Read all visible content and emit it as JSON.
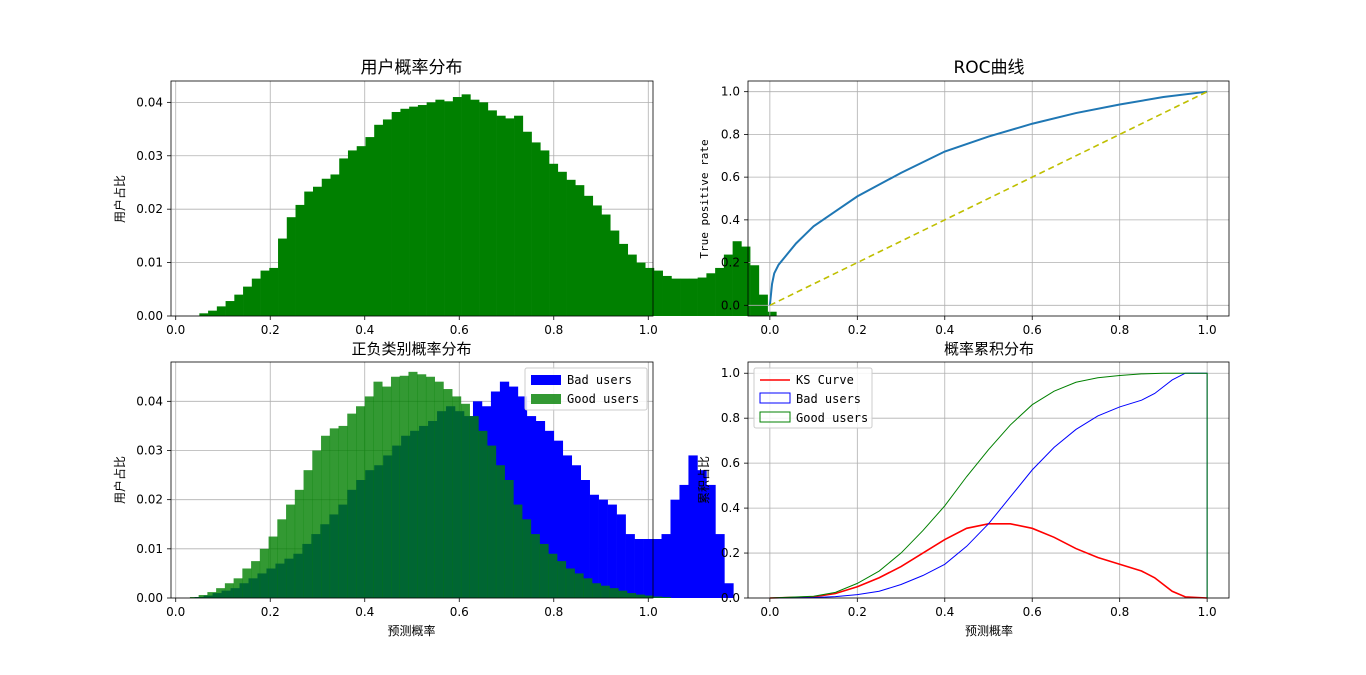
{
  "colors": {
    "green": "#008000",
    "blue": "#0000ff",
    "good_alpha_green": "#2e9a2e",
    "red": "#ff0000",
    "roc": "#1f77b4",
    "diag": "#bfbf00",
    "grid": "#b0b0b0"
  },
  "chart_data": [
    {
      "type": "bar",
      "title": "用户概率分布",
      "xlabel": "",
      "ylabel": "用户占比",
      "xlim": [
        -0.01,
        1.01
      ],
      "ylim": [
        0,
        0.044
      ],
      "xticks": [
        "0.0",
        "0.2",
        "0.4",
        "0.6",
        "0.8",
        "1.0"
      ],
      "yticks": [
        "0.00",
        "0.01",
        "0.02",
        "0.03",
        "0.04"
      ],
      "grid": true,
      "bin_start": 0.05,
      "bin_width": 0.0185,
      "series": [
        {
          "values": [
            0.0005,
            0.001,
            0.0018,
            0.0028,
            0.004,
            0.0055,
            0.007,
            0.0085,
            0.009,
            0.0145,
            0.0185,
            0.0208,
            0.0233,
            0.0242,
            0.0257,
            0.0265,
            0.0295,
            0.031,
            0.0318,
            0.0335,
            0.0358,
            0.0368,
            0.0382,
            0.0388,
            0.0392,
            0.0395,
            0.04,
            0.0405,
            0.0402,
            0.041,
            0.0415,
            0.0405,
            0.04,
            0.0385,
            0.0375,
            0.037,
            0.0375,
            0.0345,
            0.0325,
            0.031,
            0.0285,
            0.027,
            0.0255,
            0.0245,
            0.0225,
            0.0207,
            0.019,
            0.016,
            0.0135,
            0.0115,
            0.01,
            0.009,
            0.0085,
            0.0075,
            0.007,
            0.007,
            0.007,
            0.0072,
            0.008,
            0.009,
            0.0115,
            0.014,
            0.013,
            0.0095,
            0.004,
            0.0008
          ]
        }
      ]
    },
    {
      "type": "line",
      "title": "ROC曲线",
      "xlabel": "",
      "ylabel": "True positive rate",
      "xlim": [
        -0.05,
        1.05
      ],
      "ylim": [
        -0.05,
        1.05
      ],
      "xticks": [
        "0.0",
        "0.2",
        "0.4",
        "0.6",
        "0.8",
        "1.0"
      ],
      "yticks": [
        "0.0",
        "0.2",
        "0.4",
        "0.6",
        "0.8",
        "1.0"
      ],
      "grid": true,
      "series": [
        {
          "x": [
            0,
            0.005,
            0.01,
            0.02,
            0.04,
            0.06,
            0.08,
            0.1,
            0.15,
            0.2,
            0.3,
            0.4,
            0.5,
            0.6,
            0.7,
            0.8,
            0.9,
            1.0
          ],
          "y": [
            0,
            0.1,
            0.15,
            0.19,
            0.24,
            0.29,
            0.33,
            0.37,
            0.44,
            0.51,
            0.62,
            0.72,
            0.79,
            0.85,
            0.9,
            0.94,
            0.975,
            1.0
          ]
        },
        {
          "x": [
            0,
            1
          ],
          "y": [
            0,
            1
          ],
          "style": "dashed"
        }
      ]
    },
    {
      "type": "bar",
      "title": "正负类别概率分布",
      "xlabel": "预测概率",
      "ylabel": "用户占比",
      "xlim": [
        -0.01,
        1.01
      ],
      "ylim": [
        0,
        0.048
      ],
      "xticks": [
        "0.0",
        "0.2",
        "0.4",
        "0.6",
        "0.8",
        "1.0"
      ],
      "yticks": [
        "0.00",
        "0.01",
        "0.02",
        "0.03",
        "0.04"
      ],
      "grid": true,
      "legend": "upper-right",
      "series": [
        {
          "name": "Bad users",
          "bin_start": 0.04,
          "bin_width": 0.019,
          "values": [
            0.0002,
            0.0005,
            0.001,
            0.0015,
            0.002,
            0.003,
            0.004,
            0.005,
            0.006,
            0.007,
            0.008,
            0.009,
            0.011,
            0.013,
            0.015,
            0.017,
            0.019,
            0.022,
            0.024,
            0.026,
            0.027,
            0.029,
            0.031,
            0.033,
            0.034,
            0.035,
            0.036,
            0.038,
            0.039,
            0.038,
            0.037,
            0.04,
            0.039,
            0.042,
            0.044,
            0.043,
            0.041,
            0.037,
            0.036,
            0.034,
            0.032,
            0.029,
            0.027,
            0.024,
            0.021,
            0.02,
            0.019,
            0.017,
            0.013,
            0.012,
            0.012,
            0.012,
            0.013,
            0.02,
            0.023,
            0.029,
            0.026,
            0.023,
            0.013,
            0.003
          ]
        },
        {
          "name": "Good users",
          "bin_start": 0.03,
          "bin_width": 0.0185,
          "values": [
            0.0002,
            0.0006,
            0.0012,
            0.002,
            0.003,
            0.004,
            0.006,
            0.0075,
            0.01,
            0.0125,
            0.016,
            0.019,
            0.022,
            0.026,
            0.03,
            0.033,
            0.0345,
            0.035,
            0.0375,
            0.039,
            0.041,
            0.044,
            0.043,
            0.045,
            0.0452,
            0.046,
            0.0455,
            0.045,
            0.044,
            0.0425,
            0.041,
            0.0395,
            0.037,
            0.034,
            0.031,
            0.027,
            0.024,
            0.019,
            0.016,
            0.013,
            0.011,
            0.009,
            0.0075,
            0.006,
            0.005,
            0.004,
            0.003,
            0.0025,
            0.002,
            0.0015,
            0.001,
            0.0007,
            0.0005,
            0.0003,
            0.0002
          ]
        }
      ]
    },
    {
      "type": "line",
      "title": "概率累积分布",
      "xlabel": "预测概率",
      "ylabel": "累积占比",
      "xlim": [
        -0.05,
        1.05
      ],
      "ylim": [
        0,
        1.05
      ],
      "xticks": [
        "0.0",
        "0.2",
        "0.4",
        "0.6",
        "0.8",
        "1.0"
      ],
      "yticks": [
        "0.0",
        "0.2",
        "0.4",
        "0.6",
        "0.8",
        "1.0"
      ],
      "grid": true,
      "legend": "upper-left",
      "series": [
        {
          "name": "KS Curve",
          "x": [
            0,
            0.1,
            0.15,
            0.2,
            0.25,
            0.3,
            0.35,
            0.4,
            0.45,
            0.5,
            0.55,
            0.6,
            0.65,
            0.7,
            0.75,
            0.8,
            0.85,
            0.88,
            0.92,
            0.95,
            1.0
          ],
          "y": [
            0,
            0.005,
            0.02,
            0.05,
            0.09,
            0.14,
            0.2,
            0.26,
            0.31,
            0.33,
            0.33,
            0.31,
            0.27,
            0.22,
            0.18,
            0.15,
            0.12,
            0.09,
            0.03,
            0.005,
            0
          ]
        },
        {
          "name": "Bad users",
          "x": [
            0,
            0.1,
            0.15,
            0.2,
            0.25,
            0.3,
            0.35,
            0.4,
            0.45,
            0.5,
            0.55,
            0.6,
            0.65,
            0.7,
            0.75,
            0.8,
            0.85,
            0.88,
            0.92,
            0.95,
            1.0,
            1.0
          ],
          "y": [
            0,
            0.002,
            0.006,
            0.015,
            0.03,
            0.06,
            0.1,
            0.15,
            0.23,
            0.33,
            0.45,
            0.57,
            0.67,
            0.75,
            0.81,
            0.85,
            0.88,
            0.91,
            0.97,
            1.0,
            1.0,
            0
          ]
        },
        {
          "name": "Good users",
          "x": [
            0,
            0.1,
            0.15,
            0.2,
            0.25,
            0.3,
            0.35,
            0.4,
            0.45,
            0.5,
            0.55,
            0.6,
            0.65,
            0.7,
            0.75,
            0.8,
            0.85,
            0.9,
            0.95,
            1.0,
            1.0
          ],
          "y": [
            0,
            0.008,
            0.025,
            0.065,
            0.12,
            0.2,
            0.3,
            0.41,
            0.54,
            0.66,
            0.77,
            0.86,
            0.92,
            0.96,
            0.98,
            0.99,
            0.997,
            1.0,
            1.0,
            1.0,
            0
          ]
        }
      ]
    }
  ]
}
